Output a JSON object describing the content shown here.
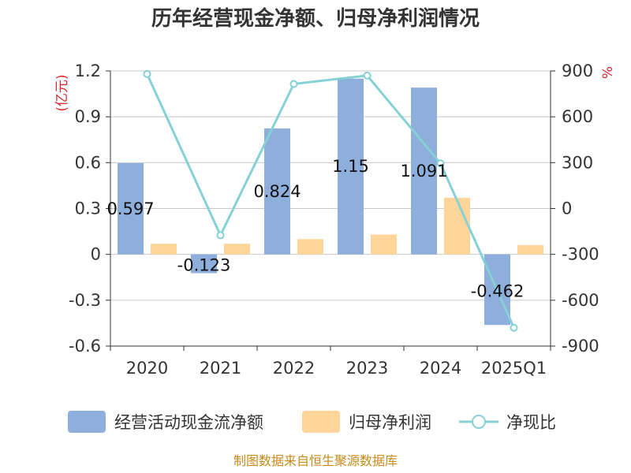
{
  "chart_data": {
    "type": "bar",
    "title": "历年经营现金净额、归母净利润情况",
    "categories": [
      "2020",
      "2021",
      "2022",
      "2023",
      "2024",
      "2025Q1"
    ],
    "left_axis": {
      "unit": "(亿元)",
      "ylim": [
        -0.6,
        1.2
      ],
      "ticks": [
        "1.2",
        "0.9",
        "0.6",
        "0.3",
        "0",
        "-0.3",
        "-0.6"
      ]
    },
    "right_axis": {
      "unit": "%",
      "ylim": [
        -900,
        900
      ],
      "ticks": [
        "900",
        "600",
        "300",
        "0",
        "-300",
        "-600",
        "-900"
      ]
    },
    "series": [
      {
        "name": "经营活动现金流净额",
        "kind": "bar",
        "axis": "left",
        "color": "#8eaedb",
        "values": [
          0.597,
          -0.123,
          0.824,
          1.15,
          1.091,
          -0.462
        ],
        "labels": [
          "0.597",
          "-0.123",
          "0.824",
          "1.15",
          "1.091",
          "-0.462"
        ]
      },
      {
        "name": "归母净利润",
        "kind": "bar",
        "axis": "left",
        "color": "#ffd699",
        "values": [
          0.07,
          0.07,
          0.1,
          0.13,
          0.37,
          0.06
        ]
      },
      {
        "name": "净现比",
        "kind": "line",
        "axis": "right",
        "color": "#86d1d6",
        "values": [
          880,
          -175,
          815,
          870,
          295,
          -780
        ]
      }
    ],
    "grid": true,
    "legend": "bottom"
  },
  "source": "制图数据来自恒生聚源数据库"
}
